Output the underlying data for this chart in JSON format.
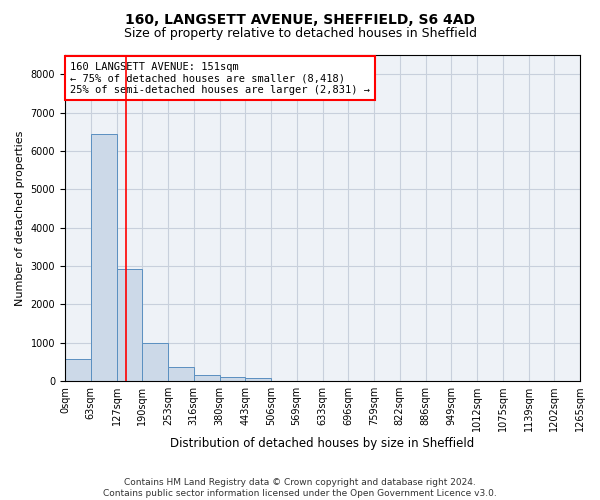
{
  "title1": "160, LANGSETT AVENUE, SHEFFIELD, S6 4AD",
  "title2": "Size of property relative to detached houses in Sheffield",
  "xlabel": "Distribution of detached houses by size in Sheffield",
  "ylabel": "Number of detached properties",
  "bar_color": "#ccd9e8",
  "bar_edge_color": "#5a8fc0",
  "grid_color": "#c8d0dc",
  "background_color": "#eef2f7",
  "vline_x": 151,
  "vline_color": "red",
  "annotation_text": "160 LANGSETT AVENUE: 151sqm\n← 75% of detached houses are smaller (8,418)\n25% of semi-detached houses are larger (2,831) →",
  "annotation_box_color": "white",
  "annotation_box_edge": "red",
  "bin_edges": [
    0,
    63,
    127,
    190,
    253,
    316,
    380,
    443,
    506,
    569,
    633,
    696,
    759,
    822,
    886,
    949,
    1012,
    1075,
    1139,
    1202,
    1265
  ],
  "bin_labels": [
    "0sqm",
    "63sqm",
    "127sqm",
    "190sqm",
    "253sqm",
    "316sqm",
    "380sqm",
    "443sqm",
    "506sqm",
    "569sqm",
    "633sqm",
    "696sqm",
    "759sqm",
    "822sqm",
    "886sqm",
    "949sqm",
    "1012sqm",
    "1075sqm",
    "1139sqm",
    "1202sqm",
    "1265sqm"
  ],
  "bar_heights": [
    570,
    6430,
    2920,
    980,
    360,
    165,
    100,
    90,
    0,
    0,
    0,
    0,
    0,
    0,
    0,
    0,
    0,
    0,
    0,
    0
  ],
  "ylim": [
    0,
    8500
  ],
  "yticks": [
    0,
    1000,
    2000,
    3000,
    4000,
    5000,
    6000,
    7000,
    8000
  ],
  "footer_text": "Contains HM Land Registry data © Crown copyright and database right 2024.\nContains public sector information licensed under the Open Government Licence v3.0.",
  "title1_fontsize": 10,
  "title2_fontsize": 9,
  "xlabel_fontsize": 8.5,
  "ylabel_fontsize": 8,
  "tick_fontsize": 7,
  "annotation_fontsize": 7.5,
  "footer_fontsize": 6.5
}
